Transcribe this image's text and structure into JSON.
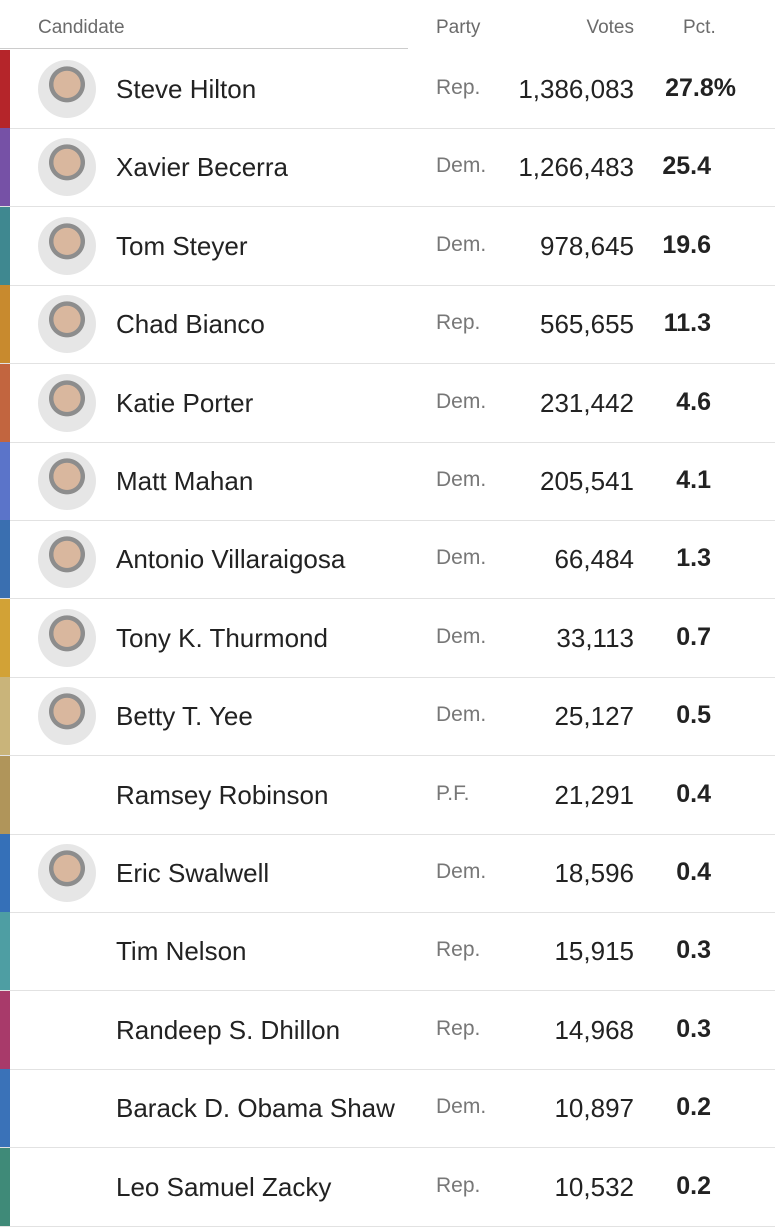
{
  "header": {
    "candidate": "Candidate",
    "party": "Party",
    "votes": "Votes",
    "pct": "Pct."
  },
  "table": {
    "rows": [
      {
        "name": "Steve Hilton",
        "party": "Rep.",
        "votes": "1,386,083",
        "pct": "27.8%",
        "color": "#b5252a"
      },
      {
        "name": "Xavier Becerra",
        "party": "Dem.",
        "votes": "1,266,483",
        "pct": "25.4",
        "color": "#7651a6"
      },
      {
        "name": "Tom Steyer",
        "party": "Dem.",
        "votes": "978,645",
        "pct": "19.6",
        "color": "#3f8890"
      },
      {
        "name": "Chad Bianco",
        "party": "Rep.",
        "votes": "565,655",
        "pct": "11.3",
        "color": "#c88a2e"
      },
      {
        "name": "Katie Porter",
        "party": "Dem.",
        "votes": "231,442",
        "pct": "4.6",
        "color": "#c2653f"
      },
      {
        "name": "Matt Mahan",
        "party": "Dem.",
        "votes": "205,541",
        "pct": "4.1",
        "color": "#5b74c9"
      },
      {
        "name": "Antonio Villaraigosa",
        "party": "Dem.",
        "votes": "66,484",
        "pct": "1.3",
        "color": "#3a6fb0"
      },
      {
        "name": "Tony K. Thurmond",
        "party": "Dem.",
        "votes": "33,113",
        "pct": "0.7",
        "color": "#d2a236"
      },
      {
        "name": "Betty T. Yee",
        "party": "Dem.",
        "votes": "25,127",
        "pct": "0.5",
        "color": "#c9b47a"
      },
      {
        "name": "Ramsey Robinson",
        "party": "P.F.",
        "votes": "21,291",
        "pct": "0.4",
        "color": "#b0955a"
      },
      {
        "name": "Eric Swalwell",
        "party": "Dem.",
        "votes": "18,596",
        "pct": "0.4",
        "color": "#3570b8"
      },
      {
        "name": "Tim Nelson",
        "party": "Rep.",
        "votes": "15,915",
        "pct": "0.3",
        "color": "#4e9ea3"
      },
      {
        "name": "Randeep S. Dhillon",
        "party": "Rep.",
        "votes": "14,968",
        "pct": "0.3",
        "color": "#a83a6a"
      },
      {
        "name": "Barack D. Obama Shaw",
        "party": "Dem.",
        "votes": "10,897",
        "pct": "0.2",
        "color": "#3a72b8"
      },
      {
        "name": "Leo Samuel Zacky",
        "party": "Rep.",
        "votes": "10,532",
        "pct": "0.2",
        "color": "#3f8a78"
      }
    ]
  }
}
